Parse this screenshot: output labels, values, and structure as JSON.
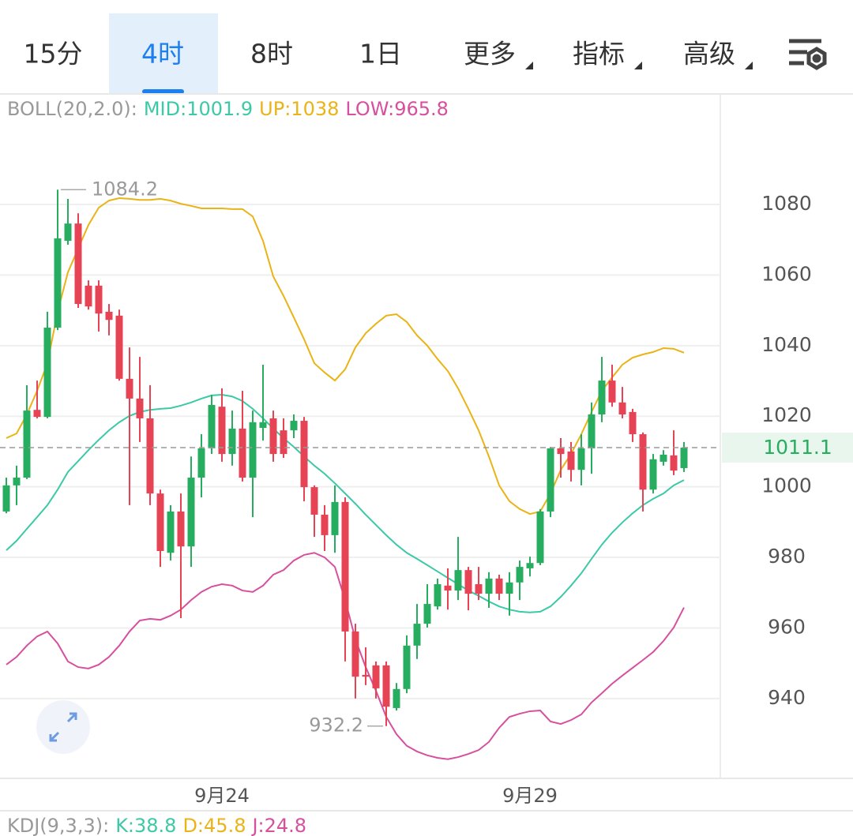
{
  "tabs": [
    "15分",
    "4时",
    "8时",
    "1日",
    "更多",
    "指标",
    "高级"
  ],
  "chart_data": {
    "type": "candlestick",
    "indicator_label": "BOLL(20,2.0):",
    "categories": [
      null,
      null,
      null,
      null,
      null,
      null,
      null,
      null,
      null,
      null,
      null,
      null,
      null,
      null,
      null,
      null,
      null,
      null,
      null,
      null,
      null,
      "9月24",
      null,
      null,
      null,
      null,
      null,
      null,
      null,
      null,
      null,
      null,
      null,
      null,
      null,
      null,
      null,
      null,
      null,
      null,
      null,
      null,
      null,
      null,
      null,
      null,
      null,
      null,
      null,
      null,
      null,
      "9月29",
      null,
      null,
      null,
      null,
      null,
      null,
      null,
      null,
      null,
      null,
      null,
      null,
      null,
      null,
      null
    ],
    "open": [
      993.0,
      1000.4,
      1002.6,
      1021.8,
      1019.8,
      1045.1,
      1069.7,
      1074.6,
      1057.0,
      1057.0,
      1049.6,
      1048.5,
      1030.6,
      1025.0,
      1019.4,
      998.1,
      981.3,
      993.0,
      983.1,
      1002.6,
      1010.9,
      1022.7,
      1009.3,
      1016.5,
      1002.6,
      1016.7,
      1019.4,
      1016.0,
      1016.0,
      1018.7,
      999.9,
      992.1,
      986.3,
      995.7,
      959.0,
      946.7,
      949.4,
      949.4,
      937.3,
      942.7,
      955.0,
      961.2,
      966.1,
      972.0,
      970.6,
      976.4,
      972.4,
      969.7,
      974.0,
      969.7,
      972.9,
      976.9,
      978.4,
      993.0,
      1010.9,
      1010.0,
      1004.8,
      1010.9,
      1020.5,
      1030.1,
      1023.9,
      1021.2,
      1014.9,
      999.2,
      1007.1,
      1008.9,
      1005.3
    ],
    "high": [
      1002.6,
      1006.0,
      1028.8,
      1030.1,
      1049.6,
      1084.2,
      1081.6,
      1077.5,
      1058.5,
      1058.5,
      1051.8,
      1050.2,
      1039.5,
      1036.8,
      1028.8,
      999.2,
      994.8,
      998.1,
      1008.6,
      1014.9,
      1026.1,
      1027.9,
      1021.6,
      1027.2,
      1021.6,
      1034.6,
      1021.6,
      1019.4,
      1020.5,
      1019.8,
      1000.4,
      994.8,
      1000.4,
      997.0,
      961.2,
      954.5,
      950.5,
      950.5,
      944.4,
      957.9,
      966.8,
      972.4,
      974.0,
      976.9,
      985.8,
      977.3,
      977.3,
      975.8,
      975.1,
      975.8,
      979.1,
      980.2,
      993.7,
      1011.3,
      1013.8,
      1012.7,
      1014.9,
      1023.9,
      1036.8,
      1034.6,
      1028.3,
      1022.1,
      1015.4,
      1009.3,
      1010.4,
      1016.0,
      1012.7
    ],
    "low": [
      992.5,
      994.8,
      1002.2,
      1019.4,
      1019.4,
      1044.4,
      1068.6,
      1050.7,
      1050.2,
      1044.0,
      1042.9,
      1030.1,
      994.8,
      1012.7,
      994.8,
      977.3,
      979.1,
      962.8,
      977.3,
      997.0,
      1009.3,
      1007.1,
      1006.0,
      1001.5,
      991.4,
      1013.1,
      1007.1,
      1008.2,
      1013.8,
      995.9,
      985.8,
      981.8,
      981.3,
      950.5,
      940.0,
      943.8,
      940.0,
      932.2,
      936.6,
      941.5,
      951.2,
      960.1,
      965.2,
      965.2,
      967.9,
      965.0,
      967.9,
      965.7,
      967.9,
      963.5,
      967.9,
      974.6,
      977.8,
      991.4,
      1002.6,
      1001.5,
      1000.4,
      1003.7,
      1018.3,
      1022.7,
      1019.4,
      1012.7,
      993.0,
      998.1,
      1006.0,
      1003.3,
      1004.2
    ],
    "close": [
      1000.4,
      1002.6,
      1021.6,
      1019.8,
      1045.1,
      1070.4,
      1074.6,
      1051.8,
      1051.1,
      1049.1,
      1047.3,
      1030.6,
      1025.0,
      1019.4,
      998.1,
      981.8,
      993.0,
      983.1,
      1002.6,
      1010.9,
      1023.2,
      1009.3,
      1016.5,
      1002.6,
      1018.3,
      1018.3,
      1009.3,
      1009.3,
      1018.7,
      999.9,
      992.1,
      986.3,
      995.7,
      959.0,
      946.2,
      946.2,
      942.9,
      937.7,
      942.7,
      955.0,
      961.2,
      966.8,
      972.4,
      970.6,
      976.4,
      969.7,
      969.7,
      974.0,
      969.7,
      972.9,
      977.3,
      978.4,
      993.0,
      1010.9,
      1009.3,
      1004.8,
      1010.9,
      1020.5,
      1030.1,
      1023.9,
      1020.5,
      1014.9,
      999.2,
      1007.8,
      1009.1,
      1004.6,
      1011.1
    ],
    "up_color": "#27ad60",
    "down_color": "#e64355",
    "overlays": [
      {
        "name": "MID:",
        "color": "#3cc9a6",
        "values": [
          982.0,
          984.7,
          988.1,
          991.4,
          994.8,
          999.2,
          1004.2,
          1007.3,
          1010.4,
          1013.3,
          1016.0,
          1018.3,
          1020.1,
          1021.2,
          1021.8,
          1022.1,
          1022.3,
          1023.0,
          1023.9,
          1025.0,
          1025.9,
          1026.1,
          1025.6,
          1024.3,
          1022.1,
          1019.4,
          1016.5,
          1013.8,
          1011.3,
          1008.6,
          1006.0,
          1003.7,
          1001.0,
          998.1,
          995.2,
          992.1,
          989.2,
          986.3,
          983.6,
          981.3,
          979.6,
          977.8,
          976.0,
          974.2,
          972.4,
          970.6,
          969.1,
          967.5,
          966.1,
          965.2,
          964.6,
          964.4,
          964.6,
          966.1,
          968.8,
          972.0,
          975.5,
          979.6,
          983.6,
          987.0,
          989.9,
          992.5,
          994.8,
          996.6,
          998.1,
          1000.4,
          1001.9
        ]
      },
      {
        "name": "UP:",
        "color": "#eab316",
        "values": [
          1013.8,
          1015.1,
          1020.5,
          1027.2,
          1035.0,
          1049.6,
          1060.8,
          1067.5,
          1074.2,
          1079.1,
          1081.1,
          1081.8,
          1081.6,
          1081.3,
          1081.3,
          1081.6,
          1081.1,
          1080.2,
          1079.6,
          1078.9,
          1078.9,
          1078.9,
          1078.7,
          1078.7,
          1076.6,
          1069.7,
          1059.6,
          1054.1,
          1048.0,
          1041.8,
          1035.0,
          1032.4,
          1030.1,
          1033.3,
          1039.5,
          1043.5,
          1046.2,
          1048.5,
          1048.9,
          1046.7,
          1042.9,
          1040.0,
          1036.2,
          1032.8,
          1027.9,
          1022.1,
          1016.0,
          1008.6,
          1000.4,
          995.9,
          993.7,
          992.3,
          993.0,
          998.1,
          1004.8,
          1009.3,
          1014.9,
          1021.2,
          1027.2,
          1031.0,
          1034.6,
          1036.6,
          1037.5,
          1038.2,
          1039.3,
          1039.1,
          1038.0
        ]
      },
      {
        "name": "LOW:",
        "color": "#d6509e",
        "values": [
          949.6,
          951.8,
          955.0,
          957.6,
          959.0,
          955.6,
          950.5,
          948.9,
          948.5,
          949.6,
          951.8,
          955.0,
          959.0,
          962.1,
          962.6,
          962.3,
          963.5,
          965.2,
          967.9,
          970.2,
          971.7,
          972.4,
          972.0,
          970.6,
          970.2,
          972.0,
          975.1,
          976.4,
          979.1,
          980.7,
          981.3,
          980.0,
          977.3,
          967.9,
          956.8,
          948.9,
          942.2,
          934.8,
          929.9,
          926.6,
          925.0,
          923.9,
          923.2,
          922.8,
          923.4,
          924.3,
          925.4,
          927.7,
          931.7,
          934.8,
          935.7,
          936.4,
          936.6,
          933.5,
          932.8,
          933.9,
          935.5,
          938.9,
          941.5,
          944.2,
          946.5,
          948.7,
          950.9,
          953.2,
          956.3,
          960.1,
          965.8
        ]
      }
    ],
    "ylim": [
      917.6,
      1111.1
    ],
    "yticks": [
      940,
      960,
      980,
      1000,
      1020,
      1040,
      1060,
      1080
    ],
    "grid": true,
    "kdj": {
      "label": "KDJ(9,3,3):",
      "items": [
        {
          "name": "K:",
          "value": 38.8,
          "color": "#3cc9a6"
        },
        {
          "name": "D:",
          "value": 45.8,
          "color": "#eab316"
        },
        {
          "name": "J:",
          "value": 24.8,
          "color": "#d6509e"
        }
      ]
    }
  }
}
